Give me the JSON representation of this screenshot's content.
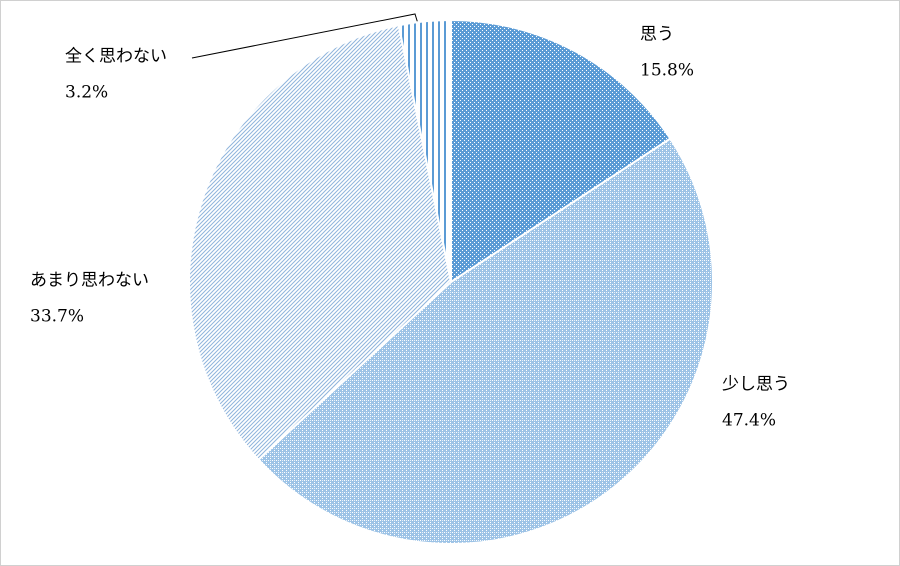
{
  "chart_data": {
    "type": "pie",
    "categories": [
      "思う",
      "少し思う",
      "あまり思わない",
      "全く思わない"
    ],
    "values": [
      15.8,
      47.4,
      33.7,
      3.2
    ],
    "value_labels": [
      "15.8%",
      "47.4%",
      "33.7%",
      "3.2%"
    ],
    "colors": [
      "#5b9bd5",
      "#9dc3e6",
      "#8fb4dc",
      "#5b9bd5"
    ]
  }
}
